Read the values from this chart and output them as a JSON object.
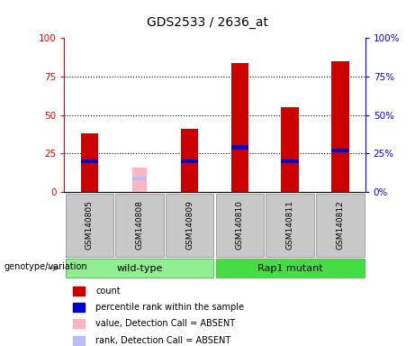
{
  "title": "GDS2533 / 2636_at",
  "samples": [
    "GSM140805",
    "GSM140808",
    "GSM140809",
    "GSM140810",
    "GSM140811",
    "GSM140812"
  ],
  "red_bars": [
    38,
    0,
    41,
    84,
    55,
    85
  ],
  "blue_markers": [
    20,
    0,
    20,
    29,
    20,
    27
  ],
  "pink_bars": [
    0,
    16,
    0,
    0,
    0,
    0
  ],
  "lavender_markers": [
    0,
    9,
    0,
    0,
    0,
    0
  ],
  "ylim": [
    0,
    100
  ],
  "yticks": [
    0,
    25,
    50,
    75,
    100
  ],
  "bar_color_red": "#CC0000",
  "bar_color_blue": "#0000CC",
  "bar_color_pink": "#FFB6C1",
  "bar_color_lavender": "#BBBBFF",
  "bar_width": 0.35,
  "bg_color": "#FFFFFF",
  "tick_area_bg": "#C8C8C8",
  "wt_color": "#90EE90",
  "rap_color": "#44DD44",
  "legend_items": [
    {
      "color": "#CC0000",
      "label": "count"
    },
    {
      "color": "#0000CC",
      "label": "percentile rank within the sample"
    },
    {
      "color": "#FFB6C1",
      "label": "value, Detection Call = ABSENT"
    },
    {
      "color": "#BBBBFF",
      "label": "rank, Detection Call = ABSENT"
    }
  ]
}
